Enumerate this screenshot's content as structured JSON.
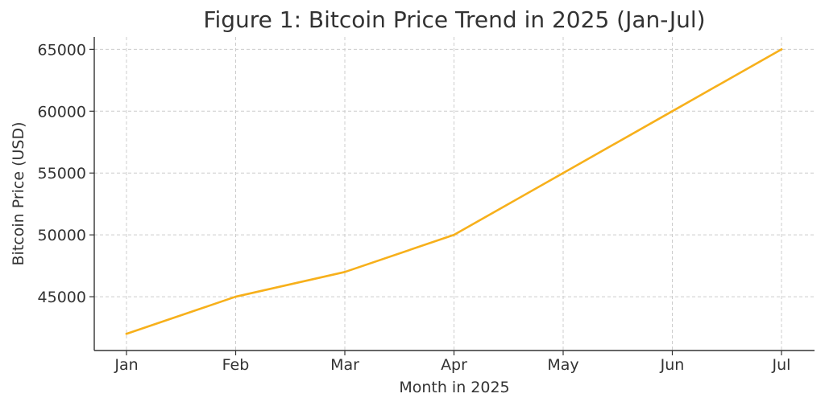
{
  "chart_data": {
    "type": "line",
    "title": "Figure 1: Bitcoin Price Trend in 2025 (Jan-Jul)",
    "xlabel": "Month in 2025",
    "ylabel": "Bitcoin Price (USD)",
    "categories": [
      "Jan",
      "Feb",
      "Mar",
      "Apr",
      "May",
      "Jun",
      "Jul"
    ],
    "series": [
      {
        "values": [
          42000,
          45000,
          47000,
          50000,
          55000,
          60000,
          65000
        ]
      }
    ],
    "yticks": [
      45000,
      50000,
      55000,
      60000,
      65000
    ],
    "ylim": [
      40650,
      66000
    ],
    "grid": true,
    "line_color": "#F7B01B",
    "grid_color": "#cccccc",
    "axis_color": "#333333"
  }
}
